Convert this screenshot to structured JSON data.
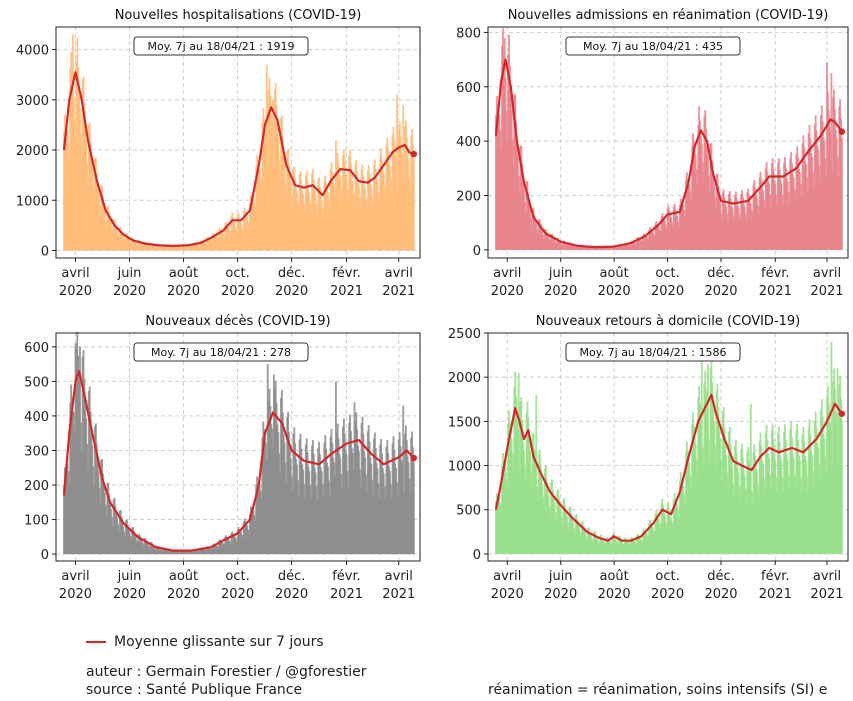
{
  "legend": {
    "label": "Moyenne glissante sur 7 jours",
    "color": "#d62728"
  },
  "footer": {
    "author": "auteur : Germain Forestier / @gforestier",
    "source": "source : Santé Publique France",
    "note": "réanimation = réanimation, soins intensifs (SI) e"
  },
  "chart_data": [
    {
      "type": "bar",
      "title": "Nouvelles hospitalisations (COVID-19)",
      "annotation": "Moy. 7j au 18/04/21 : 1919",
      "bar_color": "#ffbb78",
      "line_color": "#d62728",
      "xlim": [
        "2020-03-10",
        "2021-04-25"
      ],
      "ylim": [
        -150,
        4450
      ],
      "yticks": [
        0,
        1000,
        2000,
        3000,
        4000
      ],
      "xticks": [
        {
          "date": "2020-04-01",
          "label": [
            "avril",
            "2020"
          ]
        },
        {
          "date": "2020-06-01",
          "label": [
            "juin",
            "2020"
          ]
        },
        {
          "date": "2020-08-01",
          "label": [
            "août",
            "2020"
          ]
        },
        {
          "date": "2020-10-01",
          "label": [
            "oct.",
            "2020"
          ]
        },
        {
          "date": "2020-12-01",
          "label": [
            "déc.",
            "2020"
          ]
        },
        {
          "date": "2021-02-01",
          "label": [
            "févr.",
            "2021"
          ]
        },
        {
          "date": "2021-04-01",
          "label": [
            "avril",
            "2021"
          ]
        }
      ],
      "grid": true,
      "moving_avg": [
        [
          "2020-03-19",
          2000
        ],
        [
          "2020-03-25",
          3000
        ],
        [
          "2020-04-01",
          3550
        ],
        [
          "2020-04-08",
          3000
        ],
        [
          "2020-04-15",
          2200
        ],
        [
          "2020-04-25",
          1400
        ],
        [
          "2020-05-05",
          800
        ],
        [
          "2020-05-15",
          500
        ],
        [
          "2020-05-25",
          320
        ],
        [
          "2020-06-05",
          200
        ],
        [
          "2020-06-20",
          130
        ],
        [
          "2020-07-05",
          100
        ],
        [
          "2020-07-20",
          90
        ],
        [
          "2020-08-05",
          100
        ],
        [
          "2020-08-20",
          150
        ],
        [
          "2020-09-01",
          250
        ],
        [
          "2020-09-15",
          400
        ],
        [
          "2020-09-25",
          600
        ],
        [
          "2020-10-05",
          600
        ],
        [
          "2020-10-15",
          800
        ],
        [
          "2020-10-25",
          1700
        ],
        [
          "2020-11-01",
          2500
        ],
        [
          "2020-11-08",
          2850
        ],
        [
          "2020-11-15",
          2600
        ],
        [
          "2020-11-25",
          1700
        ],
        [
          "2020-12-05",
          1300
        ],
        [
          "2020-12-15",
          1250
        ],
        [
          "2020-12-25",
          1300
        ],
        [
          "2021-01-05",
          1100
        ],
        [
          "2021-01-15",
          1400
        ],
        [
          "2021-01-25",
          1620
        ],
        [
          "2021-02-05",
          1600
        ],
        [
          "2021-02-15",
          1380
        ],
        [
          "2021-02-25",
          1350
        ],
        [
          "2021-03-05",
          1450
        ],
        [
          "2021-03-15",
          1700
        ],
        [
          "2021-03-25",
          1950
        ],
        [
          "2021-04-01",
          2050
        ],
        [
          "2021-04-08",
          2100
        ],
        [
          "2021-04-13",
          1950
        ],
        [
          "2021-04-18",
          1919
        ]
      ],
      "daily_peaks": [
        [
          "2020-03-29",
          4300
        ],
        [
          "2020-04-02",
          3800
        ],
        [
          "2020-11-03",
          3700
        ],
        [
          "2020-11-10",
          3000
        ],
        [
          "2021-01-20",
          2200
        ],
        [
          "2021-03-30",
          3100
        ],
        [
          "2021-04-06",
          2900
        ]
      ]
    },
    {
      "type": "bar",
      "title": "Nouvelles admissions en réanimation (COVID-19)",
      "annotation": "Moy. 7j au 18/04/21 : 435",
      "bar_color": "#e8838b",
      "line_color": "#d62728",
      "xlim": [
        "2020-03-10",
        "2021-04-25"
      ],
      "ylim": [
        -30,
        820
      ],
      "yticks": [
        0,
        200,
        400,
        600,
        800
      ],
      "xticks": [
        {
          "date": "2020-04-01",
          "label": [
            "avril",
            "2020"
          ]
        },
        {
          "date": "2020-06-01",
          "label": [
            "juin",
            "2020"
          ]
        },
        {
          "date": "2020-08-01",
          "label": [
            "août",
            "2020"
          ]
        },
        {
          "date": "2020-10-01",
          "label": [
            "oct.",
            "2020"
          ]
        },
        {
          "date": "2020-12-01",
          "label": [
            "déc.",
            "2020"
          ]
        },
        {
          "date": "2021-02-01",
          "label": [
            "févr.",
            "2021"
          ]
        },
        {
          "date": "2021-04-01",
          "label": [
            "avril",
            "2021"
          ]
        }
      ],
      "grid": true,
      "moving_avg": [
        [
          "2020-03-19",
          420
        ],
        [
          "2020-03-25",
          620
        ],
        [
          "2020-03-30",
          700
        ],
        [
          "2020-04-05",
          600
        ],
        [
          "2020-04-12",
          400
        ],
        [
          "2020-04-20",
          250
        ],
        [
          "2020-05-01",
          120
        ],
        [
          "2020-05-15",
          60
        ],
        [
          "2020-06-01",
          30
        ],
        [
          "2020-06-20",
          15
        ],
        [
          "2020-07-10",
          10
        ],
        [
          "2020-08-01",
          12
        ],
        [
          "2020-08-20",
          25
        ],
        [
          "2020-09-05",
          50
        ],
        [
          "2020-09-20",
          90
        ],
        [
          "2020-10-01",
          130
        ],
        [
          "2020-10-15",
          140
        ],
        [
          "2020-10-25",
          250
        ],
        [
          "2020-11-01",
          380
        ],
        [
          "2020-11-08",
          440
        ],
        [
          "2020-11-15",
          400
        ],
        [
          "2020-11-22",
          280
        ],
        [
          "2020-12-01",
          180
        ],
        [
          "2020-12-15",
          170
        ],
        [
          "2021-01-01",
          180
        ],
        [
          "2021-01-15",
          230
        ],
        [
          "2021-01-25",
          270
        ],
        [
          "2021-02-10",
          270
        ],
        [
          "2021-02-25",
          300
        ],
        [
          "2021-03-10",
          360
        ],
        [
          "2021-03-25",
          420
        ],
        [
          "2021-04-05",
          480
        ],
        [
          "2021-04-10",
          470
        ],
        [
          "2021-04-18",
          435
        ]
      ],
      "daily_peaks": [
        [
          "2020-03-29",
          780
        ],
        [
          "2020-04-02",
          720
        ],
        [
          "2020-11-05",
          460
        ],
        [
          "2021-04-01",
          690
        ],
        [
          "2021-04-06",
          650
        ]
      ]
    },
    {
      "type": "bar",
      "title": "Nouveaux décès (COVID-19)",
      "annotation": "Moy. 7j au 18/04/21 : 278",
      "bar_color": "#8c8c8c",
      "line_color": "#d62728",
      "xlim": [
        "2020-03-10",
        "2021-04-25"
      ],
      "ylim": [
        -20,
        640
      ],
      "yticks": [
        0,
        100,
        200,
        300,
        400,
        500,
        600
      ],
      "xticks": [
        {
          "date": "2020-04-01",
          "label": [
            "avril",
            "2020"
          ]
        },
        {
          "date": "2020-06-01",
          "label": [
            "juin",
            "2020"
          ]
        },
        {
          "date": "2020-08-01",
          "label": [
            "août",
            "2020"
          ]
        },
        {
          "date": "2020-10-01",
          "label": [
            "oct.",
            "2020"
          ]
        },
        {
          "date": "2020-12-01",
          "label": [
            "déc.",
            "2020"
          ]
        },
        {
          "date": "2021-02-01",
          "label": [
            "févr.",
            "2021"
          ]
        },
        {
          "date": "2021-04-01",
          "label": [
            "avril",
            "2021"
          ]
        }
      ],
      "grid": true,
      "moving_avg": [
        [
          "2020-03-19",
          170
        ],
        [
          "2020-03-25",
          350
        ],
        [
          "2020-04-01",
          500
        ],
        [
          "2020-04-05",
          530
        ],
        [
          "2020-04-12",
          450
        ],
        [
          "2020-04-20",
          350
        ],
        [
          "2020-05-01",
          220
        ],
        [
          "2020-05-10",
          150
        ],
        [
          "2020-05-25",
          90
        ],
        [
          "2020-06-10",
          50
        ],
        [
          "2020-07-01",
          20
        ],
        [
          "2020-07-20",
          10
        ],
        [
          "2020-08-10",
          10
        ],
        [
          "2020-09-01",
          20
        ],
        [
          "2020-09-15",
          40
        ],
        [
          "2020-10-01",
          60
        ],
        [
          "2020-10-15",
          100
        ],
        [
          "2020-10-25",
          200
        ],
        [
          "2020-11-01",
          350
        ],
        [
          "2020-11-10",
          410
        ],
        [
          "2020-11-20",
          380
        ],
        [
          "2020-12-01",
          300
        ],
        [
          "2020-12-15",
          270
        ],
        [
          "2021-01-01",
          260
        ],
        [
          "2021-01-15",
          290
        ],
        [
          "2021-02-01",
          320
        ],
        [
          "2021-02-15",
          330
        ],
        [
          "2021-03-01",
          290
        ],
        [
          "2021-03-15",
          260
        ],
        [
          "2021-04-01",
          280
        ],
        [
          "2021-04-10",
          300
        ],
        [
          "2021-04-18",
          278
        ]
      ],
      "daily_peaks": [
        [
          "2020-04-01",
          610
        ],
        [
          "2020-04-06",
          600
        ],
        [
          "2020-11-04",
          550
        ],
        [
          "2020-11-11",
          520
        ],
        [
          "2021-01-20",
          500
        ],
        [
          "2021-02-10",
          440
        ],
        [
          "2021-04-06",
          430
        ]
      ]
    },
    {
      "type": "bar",
      "title": "Nouveaux retours à domicile (COVID-19)",
      "annotation": "Moy. 7j au 18/04/21 : 1586",
      "bar_color": "#98df8a",
      "line_color": "#d62728",
      "xlim": [
        "2020-03-10",
        "2021-04-25"
      ],
      "ylim": [
        -80,
        2500
      ],
      "yticks": [
        0,
        500,
        1000,
        1500,
        2000,
        2500
      ],
      "xticks": [
        {
          "date": "2020-04-01",
          "label": [
            "avril",
            "2020"
          ]
        },
        {
          "date": "2020-06-01",
          "label": [
            "juin",
            "2020"
          ]
        },
        {
          "date": "2020-08-01",
          "label": [
            "août",
            "2020"
          ]
        },
        {
          "date": "2020-10-01",
          "label": [
            "oct.",
            "2020"
          ]
        },
        {
          "date": "2020-12-01",
          "label": [
            "déc.",
            "2020"
          ]
        },
        {
          "date": "2021-02-01",
          "label": [
            "févr.",
            "2021"
          ]
        },
        {
          "date": "2021-04-01",
          "label": [
            "avril",
            "2021"
          ]
        }
      ],
      "grid": true,
      "moving_avg": [
        [
          "2020-03-19",
          500
        ],
        [
          "2020-03-25",
          800
        ],
        [
          "2020-04-01",
          1200
        ],
        [
          "2020-04-10",
          1650
        ],
        [
          "2020-04-15",
          1500
        ],
        [
          "2020-04-20",
          1300
        ],
        [
          "2020-04-25",
          1400
        ],
        [
          "2020-05-01",
          1100
        ],
        [
          "2020-05-10",
          900
        ],
        [
          "2020-05-20",
          700
        ],
        [
          "2020-06-01",
          550
        ],
        [
          "2020-06-15",
          400
        ],
        [
          "2020-07-01",
          250
        ],
        [
          "2020-07-15",
          180
        ],
        [
          "2020-07-25",
          150
        ],
        [
          "2020-08-01",
          200
        ],
        [
          "2020-08-10",
          150
        ],
        [
          "2020-08-20",
          150
        ],
        [
          "2020-09-01",
          200
        ],
        [
          "2020-09-15",
          350
        ],
        [
          "2020-09-25",
          500
        ],
        [
          "2020-10-05",
          450
        ],
        [
          "2020-10-15",
          700
        ],
        [
          "2020-10-25",
          1100
        ],
        [
          "2020-11-05",
          1500
        ],
        [
          "2020-11-15",
          1700
        ],
        [
          "2020-11-20",
          1800
        ],
        [
          "2020-11-25",
          1600
        ],
        [
          "2020-12-05",
          1300
        ],
        [
          "2020-12-15",
          1050
        ],
        [
          "2020-12-25",
          1000
        ],
        [
          "2021-01-05",
          950
        ],
        [
          "2021-01-15",
          1100
        ],
        [
          "2021-01-25",
          1200
        ],
        [
          "2021-02-05",
          1150
        ],
        [
          "2021-02-20",
          1200
        ],
        [
          "2021-03-05",
          1150
        ],
        [
          "2021-03-20",
          1300
        ],
        [
          "2021-04-01",
          1500
        ],
        [
          "2021-04-10",
          1700
        ],
        [
          "2021-04-18",
          1586
        ]
      ],
      "daily_peaks": [
        [
          "2020-04-14",
          2050
        ],
        [
          "2020-05-04",
          1800
        ],
        [
          "2020-11-09",
          2200
        ],
        [
          "2020-11-16",
          2150
        ],
        [
          "2021-01-04",
          1700
        ],
        [
          "2021-04-06",
          2400
        ],
        [
          "2021-04-13",
          2100
        ]
      ]
    }
  ]
}
